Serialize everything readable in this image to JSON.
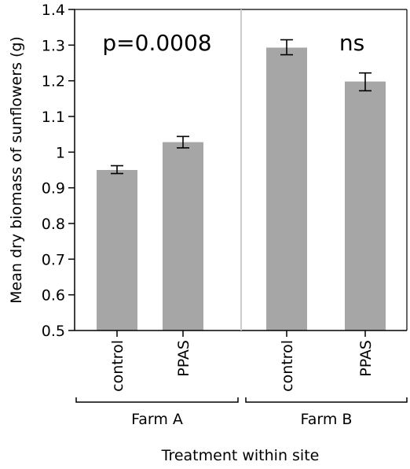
{
  "chart_data": {
    "type": "bar",
    "title": "",
    "xlabel": "Treatment within site",
    "ylabel": "Mean dry biomass of sunflowers (g)",
    "ylim": [
      0.5,
      1.4
    ],
    "yticks": [
      "0.5",
      "0.6",
      "0.7",
      "0.8",
      "0.9",
      "1",
      "1.1",
      "1.2",
      "1.3",
      "1.4"
    ],
    "grid": false,
    "groups": [
      {
        "name": "Farm A",
        "annotation": "p=0.0008",
        "bars": [
          {
            "category": "control",
            "value": 0.95,
            "err_low": 0.94,
            "err_high": 0.962
          },
          {
            "category": "PPAS",
            "value": 1.028,
            "err_low": 1.012,
            "err_high": 1.044
          }
        ]
      },
      {
        "name": "Farm B",
        "annotation": "ns",
        "bars": [
          {
            "category": "control",
            "value": 1.293,
            "err_low": 1.273,
            "err_high": 1.315
          },
          {
            "category": "PPAS",
            "value": 1.198,
            "err_low": 1.172,
            "err_high": 1.222
          }
        ]
      }
    ],
    "colors": {
      "bar": "#a6a6a6",
      "divider": "#cccccc",
      "axis": "#000000"
    }
  }
}
